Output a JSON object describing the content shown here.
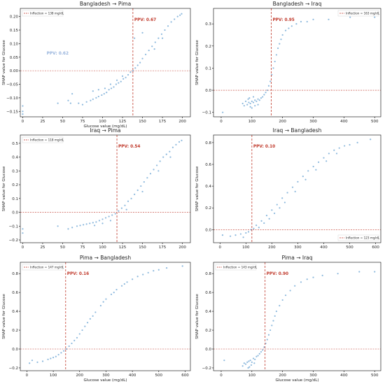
{
  "colors": {
    "point": "#2f7fc1",
    "inflection": "#c0392b",
    "zero": "#c0392b"
  },
  "chart_data": [
    {
      "type": "scatter",
      "title": "Bangladesh → Pima",
      "xlabel": "Glucose value (mg/dL)",
      "ylabel": "SHAP value for Glucose",
      "xlim": [
        -3,
        210
      ],
      "ylim": [
        -0.17,
        0.23
      ],
      "xticks": [
        "0",
        "25",
        "50",
        "75",
        "100",
        "125",
        "150",
        "175",
        "200"
      ],
      "xtick_values": [
        0,
        25,
        50,
        75,
        100,
        125,
        150,
        175,
        200
      ],
      "yticks": [
        "−0.15",
        "−0.10",
        "−0.05",
        "0.00",
        "0.05",
        "0.10",
        "0.15",
        "0.20"
      ],
      "ytick_values": [
        -0.15,
        -0.1,
        -0.05,
        0.0,
        0.05,
        0.1,
        0.15,
        0.2
      ],
      "inflection": 138,
      "legend": "Inflection = 138 mg/dL",
      "legend_loc": "upper left",
      "ppv_label": "PPV: 0.67",
      "ghost_label": "PPV: 0.62",
      "points": [
        [
          0,
          -0.16
        ],
        [
          0,
          -0.13
        ],
        [
          0,
          -0.15
        ],
        [
          44,
          -0.12
        ],
        [
          57,
          -0.11
        ],
        [
          62,
          -0.085
        ],
        [
          70,
          -0.12
        ],
        [
          75,
          -0.125
        ],
        [
          80,
          -0.115
        ],
        [
          85,
          -0.11
        ],
        [
          88,
          -0.105
        ],
        [
          92,
          -0.1
        ],
        [
          95,
          -0.095
        ],
        [
          99,
          -0.09
        ],
        [
          102,
          -0.085
        ],
        [
          105,
          -0.08
        ],
        [
          108,
          -0.07
        ],
        [
          111,
          -0.065
        ],
        [
          114,
          -0.06
        ],
        [
          117,
          -0.05
        ],
        [
          120,
          -0.045
        ],
        [
          123,
          -0.04
        ],
        [
          126,
          -0.03
        ],
        [
          129,
          -0.025
        ],
        [
          132,
          -0.015
        ],
        [
          135,
          -0.005
        ],
        [
          138,
          0.0
        ],
        [
          141,
          0.01
        ],
        [
          144,
          0.02
        ],
        [
          147,
          0.03
        ],
        [
          150,
          0.045
        ],
        [
          154,
          0.06
        ],
        [
          158,
          0.075
        ],
        [
          162,
          0.09
        ],
        [
          166,
          0.105
        ],
        [
          170,
          0.12
        ],
        [
          174,
          0.135
        ],
        [
          178,
          0.15
        ],
        [
          182,
          0.165
        ],
        [
          186,
          0.18
        ],
        [
          190,
          0.19
        ],
        [
          194,
          0.2
        ],
        [
          197,
          0.205
        ],
        [
          199,
          0.21
        ],
        [
          88,
          -0.075
        ],
        [
          95,
          -0.07
        ],
        [
          103,
          -0.065
        ],
        [
          110,
          -0.05
        ],
        [
          118,
          -0.035
        ],
        [
          125,
          -0.02
        ],
        [
          60,
          -0.12
        ],
        [
          140,
          0.12
        ],
        [
          150,
          0.14
        ],
        [
          165,
          0.08
        ],
        [
          175,
          0.12
        ]
      ]
    },
    {
      "type": "scatter",
      "title": "Bangladesh → Iraq",
      "xlabel": "",
      "ylabel": "SHAP value for Glucose",
      "xlim": [
        -25,
        520
      ],
      "ylim": [
        -0.12,
        0.37
      ],
      "xticks": [
        "0",
        "100",
        "200",
        "300",
        "400",
        "500"
      ],
      "xtick_values": [
        0,
        100,
        200,
        300,
        400,
        500
      ],
      "yticks": [
        "−0.1",
        "0.0",
        "0.1",
        "0.2",
        "0.3"
      ],
      "ytick_values": [
        -0.1,
        0.0,
        0.1,
        0.2,
        0.3
      ],
      "inflection": 163,
      "legend": "Inflection = 163 mg/dL",
      "legend_loc": "upper right",
      "ppv_label": "PPV: 0.95",
      "ghost_label": "",
      "points": [
        [
          5,
          -0.1
        ],
        [
          70,
          -0.06
        ],
        [
          75,
          -0.07
        ],
        [
          80,
          -0.05
        ],
        [
          85,
          -0.065
        ],
        [
          90,
          -0.055
        ],
        [
          95,
          -0.06
        ],
        [
          100,
          -0.05
        ],
        [
          105,
          -0.055
        ],
        [
          110,
          -0.045
        ],
        [
          115,
          -0.05
        ],
        [
          120,
          -0.04
        ],
        [
          125,
          -0.045
        ],
        [
          130,
          -0.035
        ],
        [
          135,
          -0.03
        ],
        [
          140,
          -0.02
        ],
        [
          145,
          -0.01
        ],
        [
          150,
          0.0
        ],
        [
          155,
          0.02
        ],
        [
          160,
          0.04
        ],
        [
          165,
          0.07
        ],
        [
          170,
          0.1
        ],
        [
          175,
          0.13
        ],
        [
          180,
          0.16
        ],
        [
          185,
          0.19
        ],
        [
          190,
          0.21
        ],
        [
          195,
          0.23
        ],
        [
          200,
          0.25
        ],
        [
          210,
          0.27
        ],
        [
          220,
          0.28
        ],
        [
          230,
          0.29
        ],
        [
          245,
          0.3
        ],
        [
          260,
          0.31
        ],
        [
          280,
          0.31
        ],
        [
          300,
          0.32
        ],
        [
          350,
          0.32
        ],
        [
          420,
          0.33
        ],
        [
          500,
          0.33
        ],
        [
          95,
          -0.075
        ],
        [
          100,
          -0.08
        ],
        [
          110,
          -0.07
        ],
        [
          120,
          -0.065
        ],
        [
          88,
          -0.04
        ],
        [
          92,
          -0.035
        ],
        [
          105,
          -0.03
        ]
      ]
    },
    {
      "type": "scatter",
      "title": "Iraq → Pima",
      "xlabel": "",
      "ylabel": "SHAP value for Glucose",
      "xlim": [
        -3,
        210
      ],
      "ylim": [
        -0.22,
        0.56
      ],
      "xticks": [
        "0",
        "25",
        "50",
        "75",
        "100",
        "125",
        "150",
        "175",
        "200"
      ],
      "xtick_values": [
        0,
        25,
        50,
        75,
        100,
        125,
        150,
        175,
        200
      ],
      "yticks": [
        "−0.2",
        "−0.1",
        "0.0",
        "0.1",
        "0.2",
        "0.3",
        "0.4",
        "0.5"
      ],
      "ytick_values": [
        -0.2,
        -0.1,
        0.0,
        0.1,
        0.2,
        0.3,
        0.4,
        0.5
      ],
      "inflection": 118,
      "legend": "Inflection = 118 mg/dL",
      "legend_loc": "upper left",
      "ppv_label": "PPV: 0.54",
      "ghost_label": "",
      "points": [
        [
          0,
          -0.15
        ],
        [
          0,
          -0.12
        ],
        [
          44,
          -0.1
        ],
        [
          57,
          -0.12
        ],
        [
          62,
          -0.11
        ],
        [
          68,
          -0.1
        ],
        [
          72,
          -0.095
        ],
        [
          76,
          -0.09
        ],
        [
          80,
          -0.085
        ],
        [
          84,
          -0.08
        ],
        [
          88,
          -0.075
        ],
        [
          92,
          -0.07
        ],
        [
          96,
          -0.06
        ],
        [
          100,
          -0.05
        ],
        [
          104,
          -0.04
        ],
        [
          108,
          -0.03
        ],
        [
          112,
          -0.02
        ],
        [
          116,
          -0.01
        ],
        [
          120,
          0.01
        ],
        [
          124,
          0.03
        ],
        [
          128,
          0.05
        ],
        [
          132,
          0.08
        ],
        [
          136,
          0.1
        ],
        [
          140,
          0.13
        ],
        [
          144,
          0.16
        ],
        [
          148,
          0.19
        ],
        [
          152,
          0.22
        ],
        [
          156,
          0.25
        ],
        [
          160,
          0.28
        ],
        [
          164,
          0.31
        ],
        [
          168,
          0.34
        ],
        [
          172,
          0.37
        ],
        [
          176,
          0.4
        ],
        [
          180,
          0.42
        ],
        [
          184,
          0.44
        ],
        [
          188,
          0.47
        ],
        [
          192,
          0.49
        ],
        [
          196,
          0.51
        ],
        [
          199,
          0.52
        ],
        [
          90,
          -0.095
        ],
        [
          100,
          -0.08
        ],
        [
          110,
          -0.06
        ],
        [
          130,
          0.02
        ],
        [
          150,
          0.15
        ],
        [
          170,
          0.3
        ],
        [
          185,
          0.4
        ]
      ]
    },
    {
      "type": "scatter",
      "title": "Iraq → Bangladesh",
      "xlabel": "",
      "ylabel": "SHAP value for Glucose",
      "xlim": [
        -25,
        620
      ],
      "ylim": [
        -0.12,
        0.87
      ],
      "xticks": [
        "0",
        "100",
        "200",
        "300",
        "400",
        "500",
        "600"
      ],
      "xtick_values": [
        0,
        100,
        200,
        300,
        400,
        500,
        600
      ],
      "yticks": [
        "0.0",
        "0.2",
        "0.4",
        "0.6",
        "0.8"
      ],
      "ytick_values": [
        0.0,
        0.2,
        0.4,
        0.6,
        0.8
      ],
      "inflection": 123,
      "legend": "Inflection = 123 mg/dL",
      "legend_loc": "lower right",
      "ppv_label": "PPV: 0.10",
      "ghost_label": "",
      "points": [
        [
          10,
          -0.05
        ],
        [
          40,
          -0.06
        ],
        [
          60,
          -0.05
        ],
        [
          80,
          -0.04
        ],
        [
          100,
          -0.03
        ],
        [
          120,
          0.0
        ],
        [
          140,
          0.04
        ],
        [
          160,
          0.08
        ],
        [
          180,
          0.13
        ],
        [
          200,
          0.18
        ],
        [
          220,
          0.23
        ],
        [
          240,
          0.29
        ],
        [
          260,
          0.34
        ],
        [
          280,
          0.39
        ],
        [
          300,
          0.44
        ],
        [
          320,
          0.49
        ],
        [
          340,
          0.54
        ],
        [
          360,
          0.58
        ],
        [
          380,
          0.62
        ],
        [
          400,
          0.66
        ],
        [
          420,
          0.7
        ],
        [
          440,
          0.73
        ],
        [
          460,
          0.75
        ],
        [
          480,
          0.77
        ],
        [
          500,
          0.78
        ],
        [
          530,
          0.8
        ],
        [
          580,
          0.83
        ],
        [
          150,
          0.02
        ],
        [
          170,
          0.06
        ],
        [
          190,
          0.1
        ],
        [
          210,
          0.15
        ],
        [
          230,
          0.2
        ],
        [
          250,
          0.25
        ],
        [
          290,
          0.35
        ],
        [
          330,
          0.46
        ],
        [
          370,
          0.55
        ],
        [
          410,
          0.63
        ],
        [
          450,
          0.7
        ],
        [
          90,
          -0.07
        ],
        [
          110,
          -0.02
        ],
        [
          130,
          0.01
        ]
      ]
    },
    {
      "type": "scatter",
      "title": "Pima → Bangladesh",
      "xlabel": "Glucose value (mg/dL)",
      "ylabel": "SHAP value for Glucose",
      "xlim": [
        -25,
        620
      ],
      "ylim": [
        -0.23,
        0.92
      ],
      "xticks": [
        "0",
        "100",
        "200",
        "300",
        "400",
        "500",
        "600"
      ],
      "xtick_values": [
        0,
        100,
        200,
        300,
        400,
        500,
        600
      ],
      "yticks": [
        "−0.2",
        "0.0",
        "0.2",
        "0.4",
        "0.6",
        "0.8"
      ],
      "ytick_values": [
        -0.2,
        0.0,
        0.2,
        0.4,
        0.6,
        0.8
      ],
      "inflection": 147,
      "legend": "Inflection = 147 mg/dL",
      "legend_loc": "upper left",
      "ppv_label": "PPV: 0.16",
      "ghost_label": "",
      "points": [
        [
          10,
          -0.15
        ],
        [
          20,
          -0.12
        ],
        [
          40,
          -0.14
        ],
        [
          60,
          -0.13
        ],
        [
          80,
          -0.11
        ],
        [
          100,
          -0.09
        ],
        [
          120,
          -0.06
        ],
        [
          140,
          -0.02
        ],
        [
          160,
          0.03
        ],
        [
          180,
          0.09
        ],
        [
          200,
          0.16
        ],
        [
          220,
          0.24
        ],
        [
          240,
          0.32
        ],
        [
          260,
          0.39
        ],
        [
          280,
          0.46
        ],
        [
          300,
          0.53
        ],
        [
          320,
          0.58
        ],
        [
          340,
          0.63
        ],
        [
          360,
          0.67
        ],
        [
          380,
          0.71
        ],
        [
          400,
          0.74
        ],
        [
          420,
          0.77
        ],
        [
          440,
          0.79
        ],
        [
          460,
          0.81
        ],
        [
          480,
          0.83
        ],
        [
          500,
          0.84
        ],
        [
          530,
          0.86
        ],
        [
          590,
          0.88
        ],
        [
          150,
          0.0
        ],
        [
          170,
          0.06
        ],
        [
          190,
          0.12
        ],
        [
          210,
          0.2
        ],
        [
          230,
          0.28
        ],
        [
          250,
          0.35
        ],
        [
          290,
          0.5
        ],
        [
          330,
          0.6
        ],
        [
          370,
          0.69
        ],
        [
          90,
          -0.1
        ],
        [
          110,
          -0.08
        ],
        [
          130,
          -0.04
        ]
      ]
    },
    {
      "type": "scatter",
      "title": "Pima → Iraq",
      "xlabel": "Glucose value (mg/dL)",
      "ylabel": "SHAP value for Glucose",
      "xlim": [
        -25,
        520
      ],
      "ylim": [
        -0.23,
        0.92
      ],
      "xticks": [
        "0",
        "100",
        "200",
        "300",
        "400",
        "500"
      ],
      "xtick_values": [
        0,
        100,
        200,
        300,
        400,
        500
      ],
      "yticks": [
        "−0.2",
        "0.0",
        "0.2",
        "0.4",
        "0.6",
        "0.8"
      ],
      "ytick_values": [
        -0.2,
        0.0,
        0.2,
        0.4,
        0.6,
        0.8
      ],
      "inflection": 143,
      "legend": "Inflection = 143 mg/dL",
      "legend_loc": "upper left",
      "ppv_label": "PPV: 0.90",
      "ghost_label": "",
      "points": [
        [
          10,
          -0.12
        ],
        [
          70,
          -0.18
        ],
        [
          75,
          -0.15
        ],
        [
          80,
          -0.16
        ],
        [
          85,
          -0.14
        ],
        [
          90,
          -0.13
        ],
        [
          95,
          -0.12
        ],
        [
          100,
          -0.14
        ],
        [
          105,
          -0.1
        ],
        [
          110,
          -0.11
        ],
        [
          115,
          -0.08
        ],
        [
          120,
          -0.07
        ],
        [
          125,
          -0.05
        ],
        [
          130,
          -0.03
        ],
        [
          135,
          -0.01
        ],
        [
          140,
          0.02
        ],
        [
          145,
          0.06
        ],
        [
          150,
          0.1
        ],
        [
          155,
          0.15
        ],
        [
          160,
          0.2
        ],
        [
          165,
          0.25
        ],
        [
          170,
          0.3
        ],
        [
          175,
          0.35
        ],
        [
          180,
          0.4
        ],
        [
          190,
          0.46
        ],
        [
          200,
          0.52
        ],
        [
          210,
          0.57
        ],
        [
          225,
          0.62
        ],
        [
          240,
          0.67
        ],
        [
          260,
          0.71
        ],
        [
          280,
          0.74
        ],
        [
          300,
          0.76
        ],
        [
          330,
          0.78
        ],
        [
          380,
          0.8
        ],
        [
          450,
          0.82
        ],
        [
          500,
          0.82
        ],
        [
          88,
          -0.2
        ],
        [
          92,
          -0.19
        ],
        [
          98,
          -0.17
        ],
        [
          108,
          -0.15
        ]
      ]
    }
  ]
}
